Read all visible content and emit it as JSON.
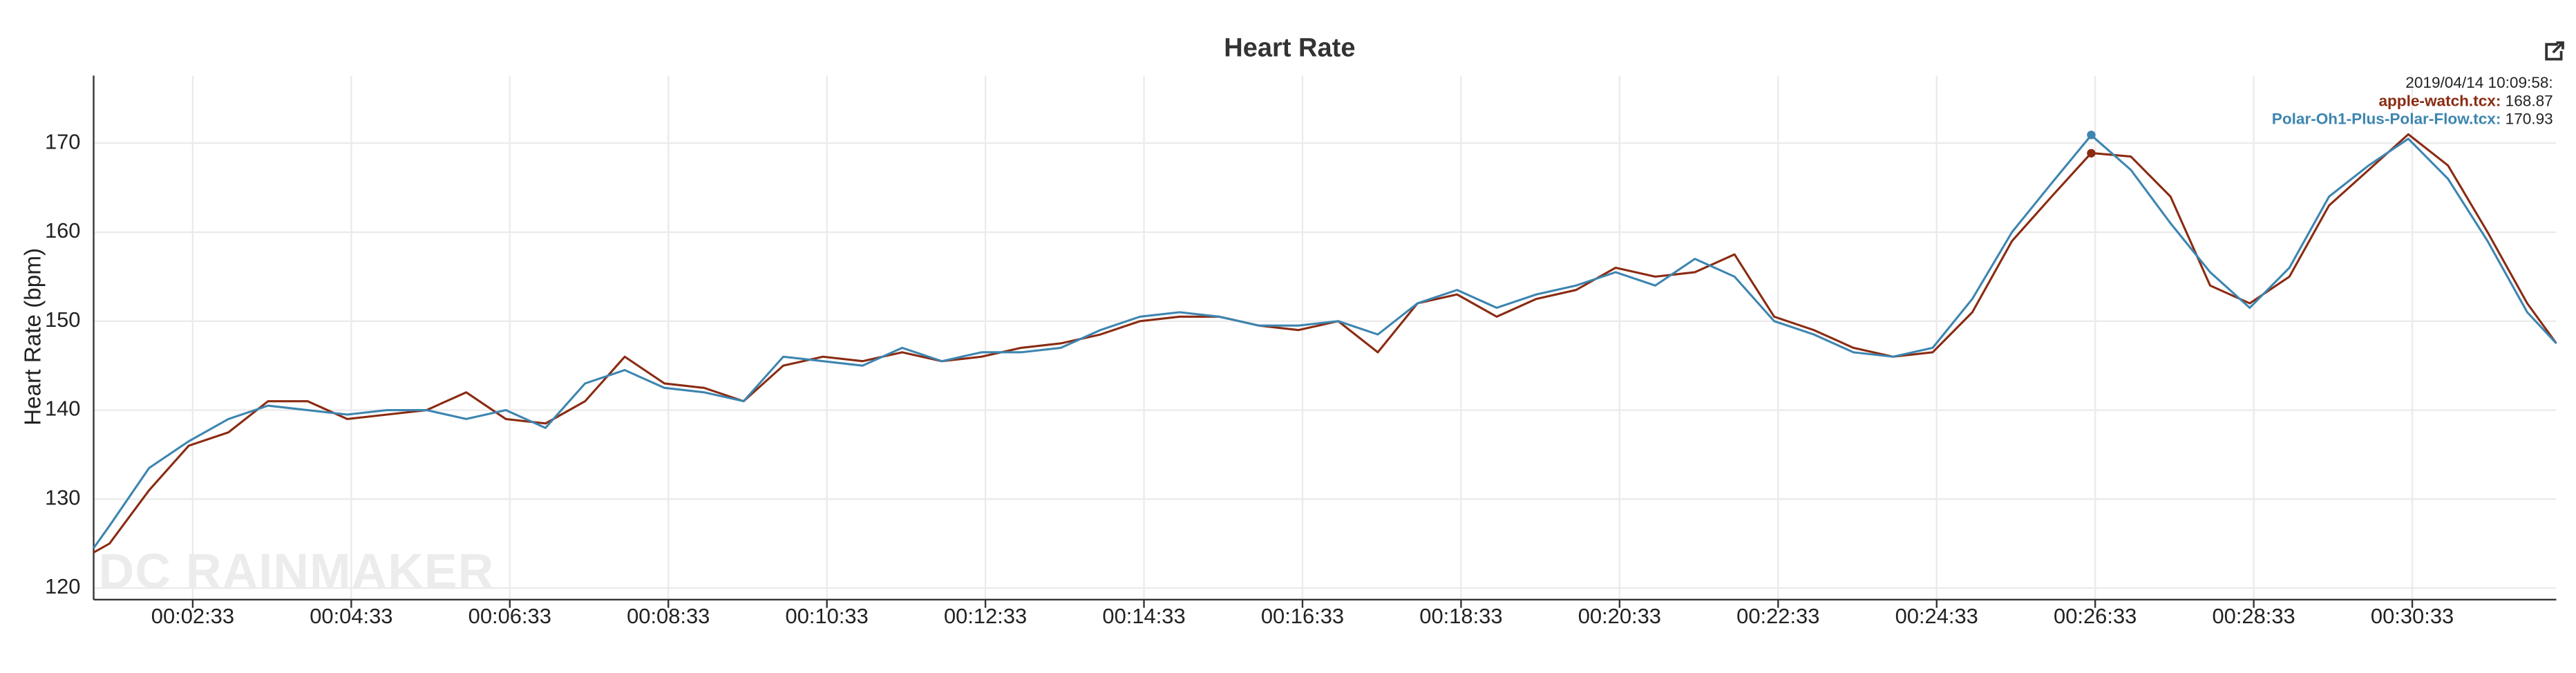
{
  "chart_data": {
    "type": "line",
    "title": "Heart Rate",
    "y_label": "Heart Rate (bpm)",
    "watermark": "DC RAINMAKER",
    "x": [
      78,
      90,
      120,
      150,
      180,
      210,
      240,
      270,
      300,
      330,
      360,
      390,
      420,
      450,
      480,
      510,
      540,
      570,
      600,
      630,
      660,
      690,
      720,
      750,
      780,
      810,
      840,
      870,
      900,
      930,
      960,
      990,
      1020,
      1050,
      1080,
      1110,
      1140,
      1170,
      1200,
      1230,
      1260,
      1290,
      1320,
      1350,
      1380,
      1410,
      1440,
      1470,
      1500,
      1530,
      1560,
      1590,
      1620,
      1650,
      1680,
      1710,
      1740,
      1770,
      1800,
      1830,
      1860,
      1890,
      1920,
      1942
    ],
    "series": [
      {
        "name": "apple-watch.tcx",
        "color": "#8a2b12",
        "values": [
          124,
          125,
          131,
          136,
          137.5,
          141,
          141,
          139,
          139.5,
          140,
          142,
          139,
          138.5,
          141,
          146,
          143,
          142.5,
          141,
          145,
          146,
          145.5,
          146.5,
          145.5,
          146,
          147,
          147.5,
          148.5,
          150,
          150.5,
          150.5,
          149.5,
          149,
          150,
          146.5,
          152,
          153,
          150.5,
          152.5,
          153.5,
          156,
          155,
          155.5,
          157.5,
          150.5,
          149,
          147,
          146,
          146.5,
          151,
          159,
          164,
          168.9,
          168.5,
          164,
          154,
          152,
          155,
          163,
          167,
          171,
          167.5,
          160,
          152,
          147.5
        ]
      },
      {
        "name": "Polar-Oh1-Plus-Polar-Flow.tcx",
        "color": "#3d85b0",
        "values": [
          124.5,
          127,
          133.5,
          136.5,
          139,
          140.5,
          140,
          139.5,
          140,
          140,
          139,
          140,
          138,
          143,
          144.5,
          142.5,
          142,
          141,
          146,
          145.5,
          145,
          147,
          145.5,
          146.5,
          146.5,
          147,
          149,
          150.5,
          151,
          150.5,
          149.5,
          149.5,
          150,
          148.5,
          152,
          153.5,
          151.5,
          153,
          154,
          155.5,
          154,
          157,
          155,
          150,
          148.5,
          146.5,
          146,
          147,
          152.5,
          160,
          165.5,
          170.9,
          167,
          161,
          155.5,
          151.5,
          156,
          164,
          167.5,
          170.5,
          166,
          159,
          151,
          147.5
        ]
      }
    ],
    "tooltip": {
      "time": "2019/04/14 10:09:58:",
      "entries": [
        {
          "name": "apple-watch.tcx:",
          "value": 168.87
        },
        {
          "name": "Polar-Oh1-Plus-Polar-Flow.tcx:",
          "value": 170.93
        }
      ]
    },
    "xlim": [
      78,
      1942
    ],
    "xticks": [
      {
        "value": 153,
        "label": "00:02:33"
      },
      {
        "value": 273,
        "label": "00:04:33"
      },
      {
        "value": 393,
        "label": "00:06:33"
      },
      {
        "value": 513,
        "label": "00:08:33"
      },
      {
        "value": 633,
        "label": "00:10:33"
      },
      {
        "value": 753,
        "label": "00:12:33"
      },
      {
        "value": 873,
        "label": "00:14:33"
      },
      {
        "value": 993,
        "label": "00:16:33"
      },
      {
        "value": 1113,
        "label": "00:18:33"
      },
      {
        "value": 1233,
        "label": "00:20:33"
      },
      {
        "value": 1353,
        "label": "00:22:33"
      },
      {
        "value": 1473,
        "label": "00:24:33"
      },
      {
        "value": 1593,
        "label": "00:26:33"
      },
      {
        "value": 1713,
        "label": "00:28:33"
      },
      {
        "value": 1833,
        "label": "00:30:33"
      }
    ],
    "ylim": [
      118.7,
      177.6
    ],
    "yticks": [
      120,
      130,
      140,
      150,
      160,
      170
    ],
    "grid": true
  }
}
